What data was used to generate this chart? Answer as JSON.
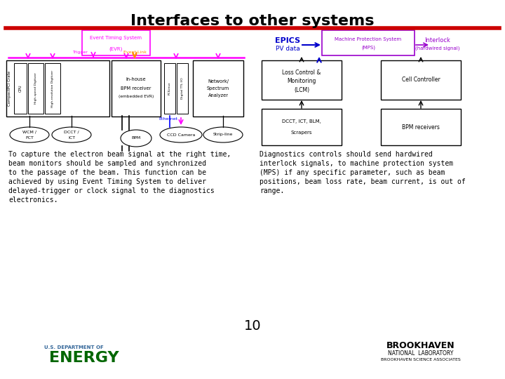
{
  "title": "Interfaces to other systems",
  "title_fontsize": 16,
  "title_color": "#000000",
  "red_line_color": "#cc0000",
  "background_color": "#ffffff",
  "left_text_lines": [
    "To capture the electron beam signal at the right time,",
    "beam monitors should be sampled and synchronized",
    "to the passage of the beam. This function can be",
    "achieved by using Event Timing System to deliver",
    "delayed-trigger or clock signal to the diagnostics",
    "electronics."
  ],
  "right_text_lines": [
    "Diagnostics controls should send hardwired",
    "interlock signals, to machine protection system",
    "(MPS) if any specific parameter, such as beam",
    "positions, beam loss rate, beam current, is out of",
    "range."
  ],
  "page_number": "10",
  "magenta": "#ff00ff",
  "orange": "#ff8800",
  "blue": "#0000ff",
  "dark_blue": "#0000cc",
  "black": "#000000",
  "purple": "#9900cc"
}
